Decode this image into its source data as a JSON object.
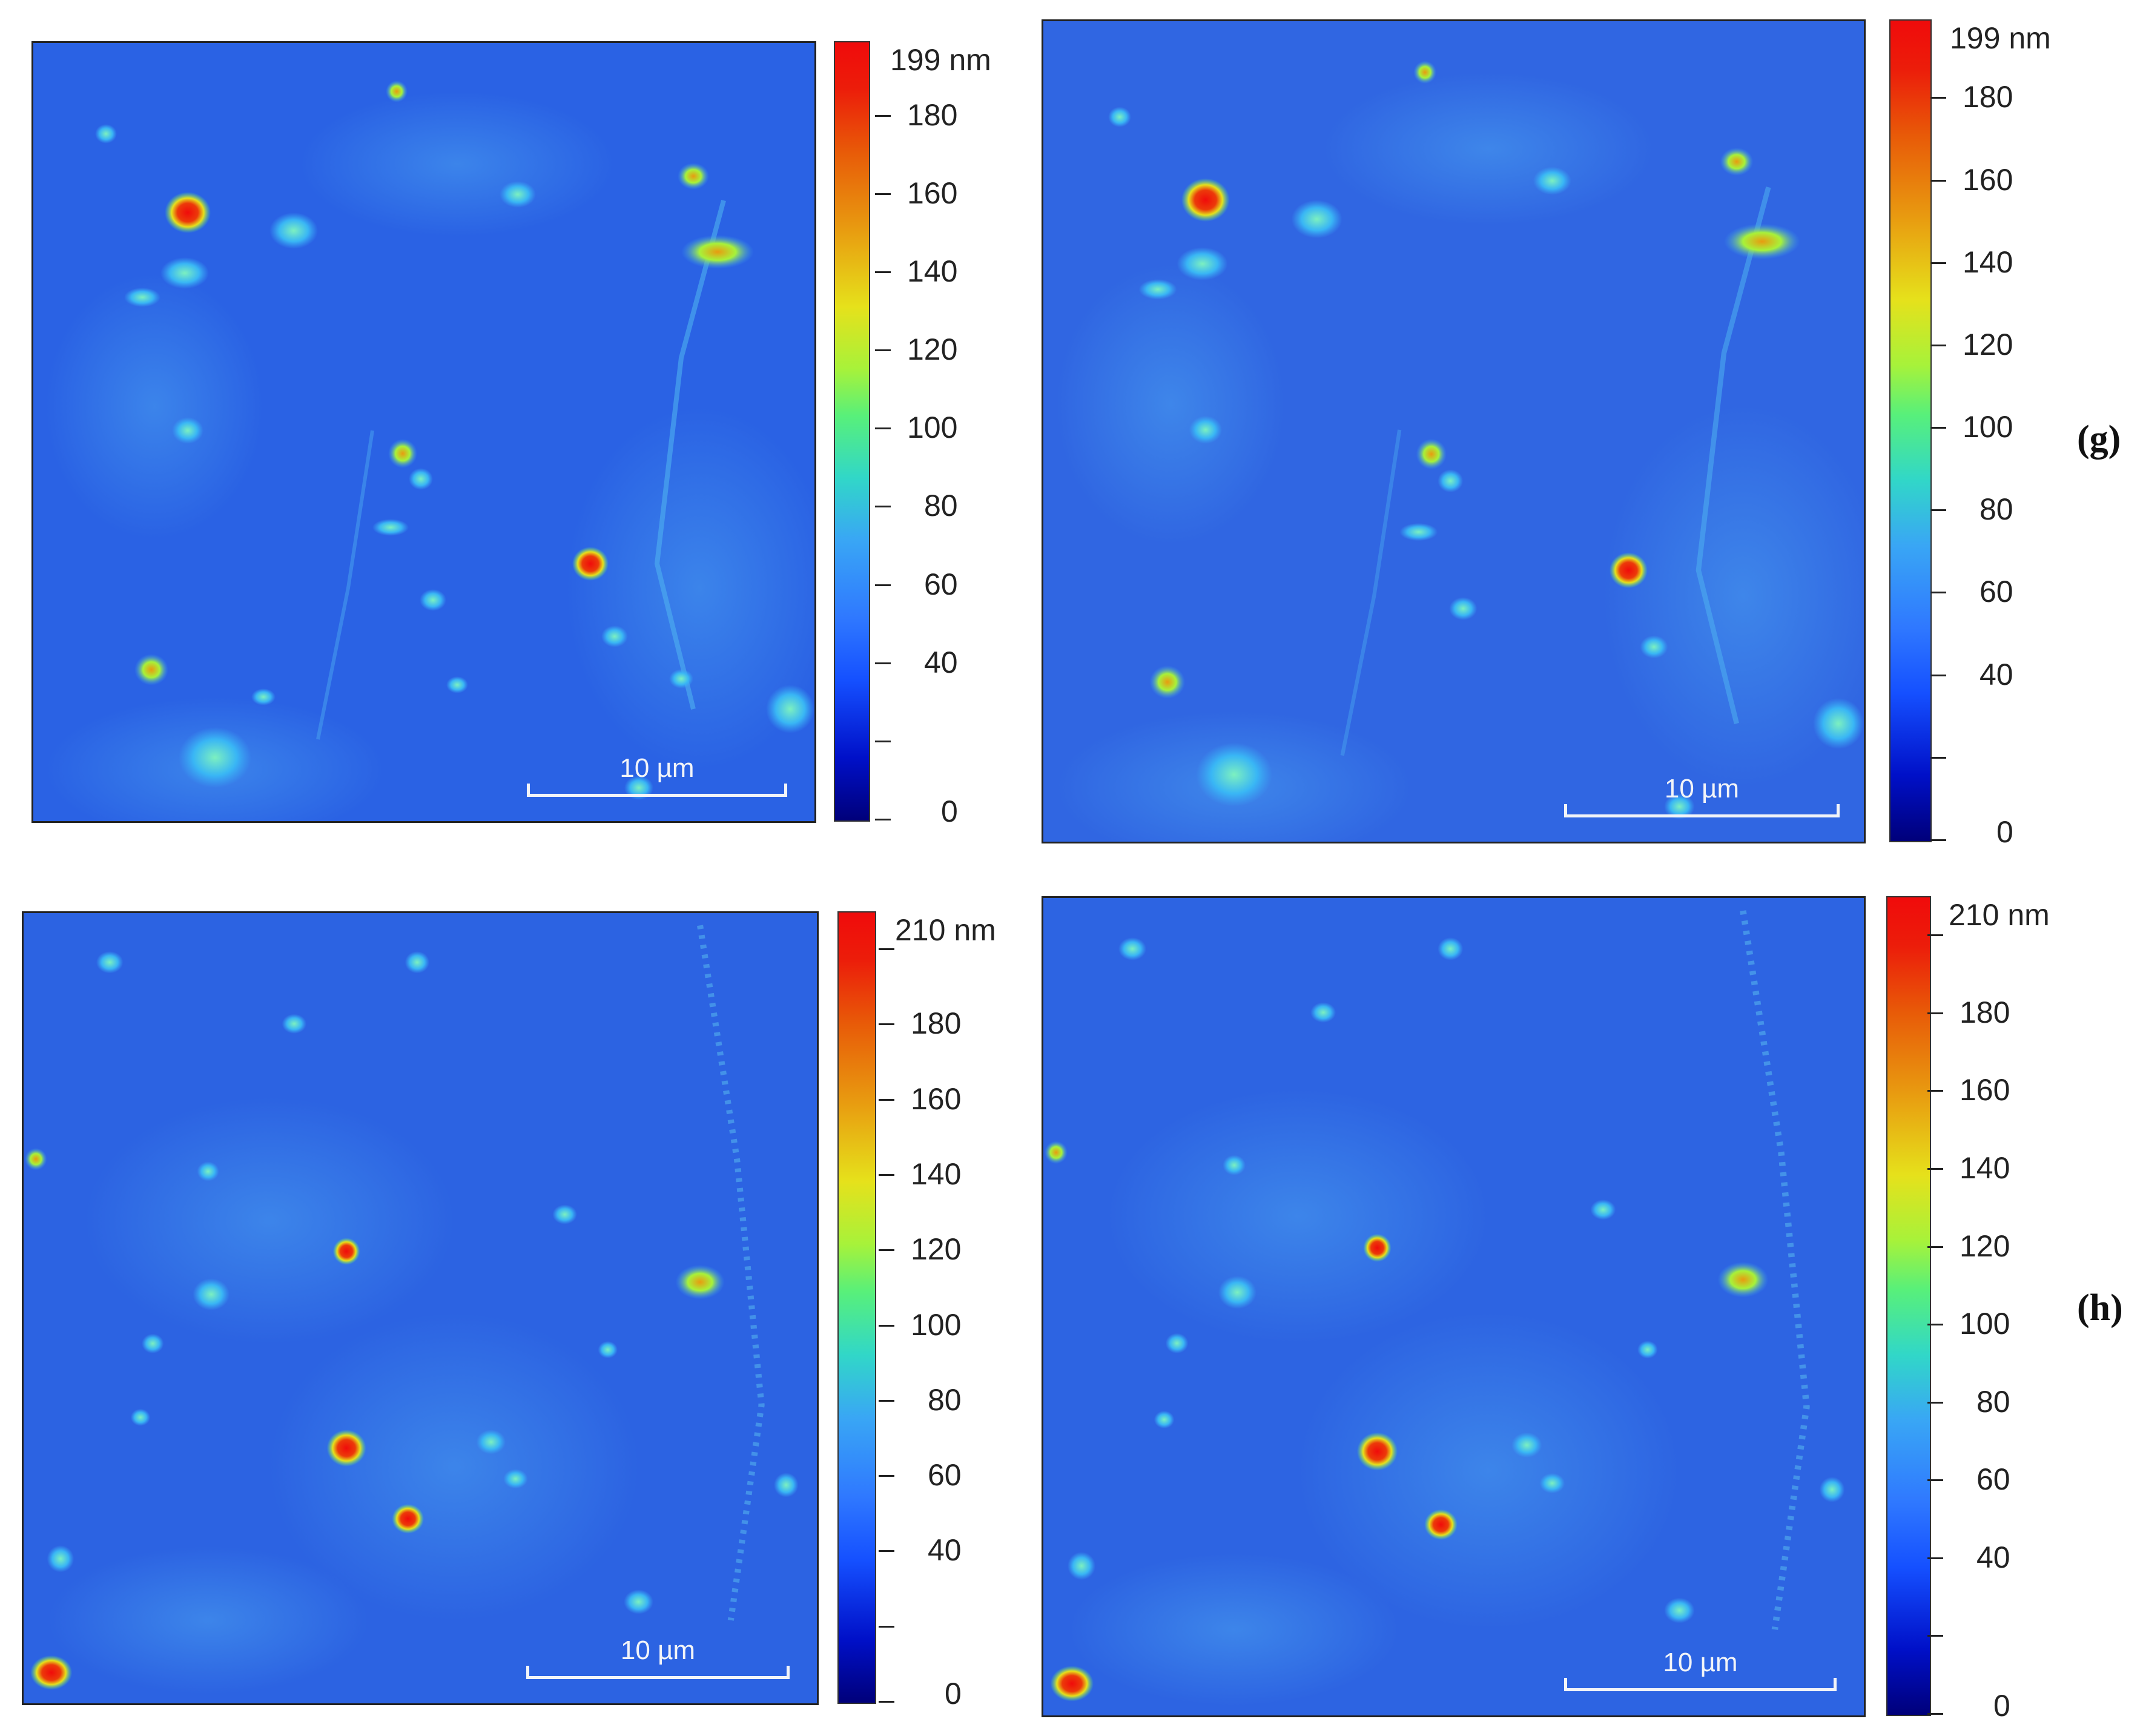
{
  "panels": [
    {
      "id": "g-left",
      "colorbar": {
        "max_label": "199 nm",
        "ticks": [
          "180",
          "160",
          "140",
          "120",
          "100",
          "80",
          "60",
          "40",
          "0"
        ],
        "max_value": 199
      },
      "scale_bar": "10 µm"
    },
    {
      "id": "g-right",
      "colorbar": {
        "max_label": "199 nm",
        "ticks": [
          "180",
          "160",
          "140",
          "120",
          "100",
          "80",
          "60",
          "40",
          "0"
        ],
        "max_value": 199
      },
      "scale_bar": "10 µm"
    },
    {
      "id": "h-left",
      "colorbar": {
        "max_label": "210 nm",
        "ticks": [
          "180",
          "160",
          "140",
          "120",
          "100",
          "80",
          "60",
          "40",
          "0"
        ],
        "max_value": 210
      },
      "scale_bar": "10 µm"
    },
    {
      "id": "h-right",
      "colorbar": {
        "max_label": "210 nm",
        "ticks": [
          "180",
          "160",
          "140",
          "120",
          "100",
          "80",
          "60",
          "40",
          "0"
        ],
        "max_value": 210
      },
      "scale_bar": "10 µm"
    }
  ],
  "row_labels": {
    "g": "(g)",
    "h": "(h)"
  },
  "colormap": [
    "#00007a",
    "#1550ff",
    "#39a6f5",
    "#58f07a",
    "#e6e11b",
    "#e85a08",
    "#f00b0b"
  ]
}
